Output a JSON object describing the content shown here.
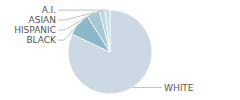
{
  "chart_data": {
    "type": "pie",
    "categories": [
      "WHITE",
      "BLACK",
      "HISPANIC",
      "ASIAN",
      "A.I."
    ],
    "values": [
      82,
      9,
      5,
      2,
      2
    ],
    "colors": [
      "#ccd9e5",
      "#8ab8c8",
      "#a4c8d5",
      "#b8d5e0",
      "#c8e0ea"
    ]
  }
}
